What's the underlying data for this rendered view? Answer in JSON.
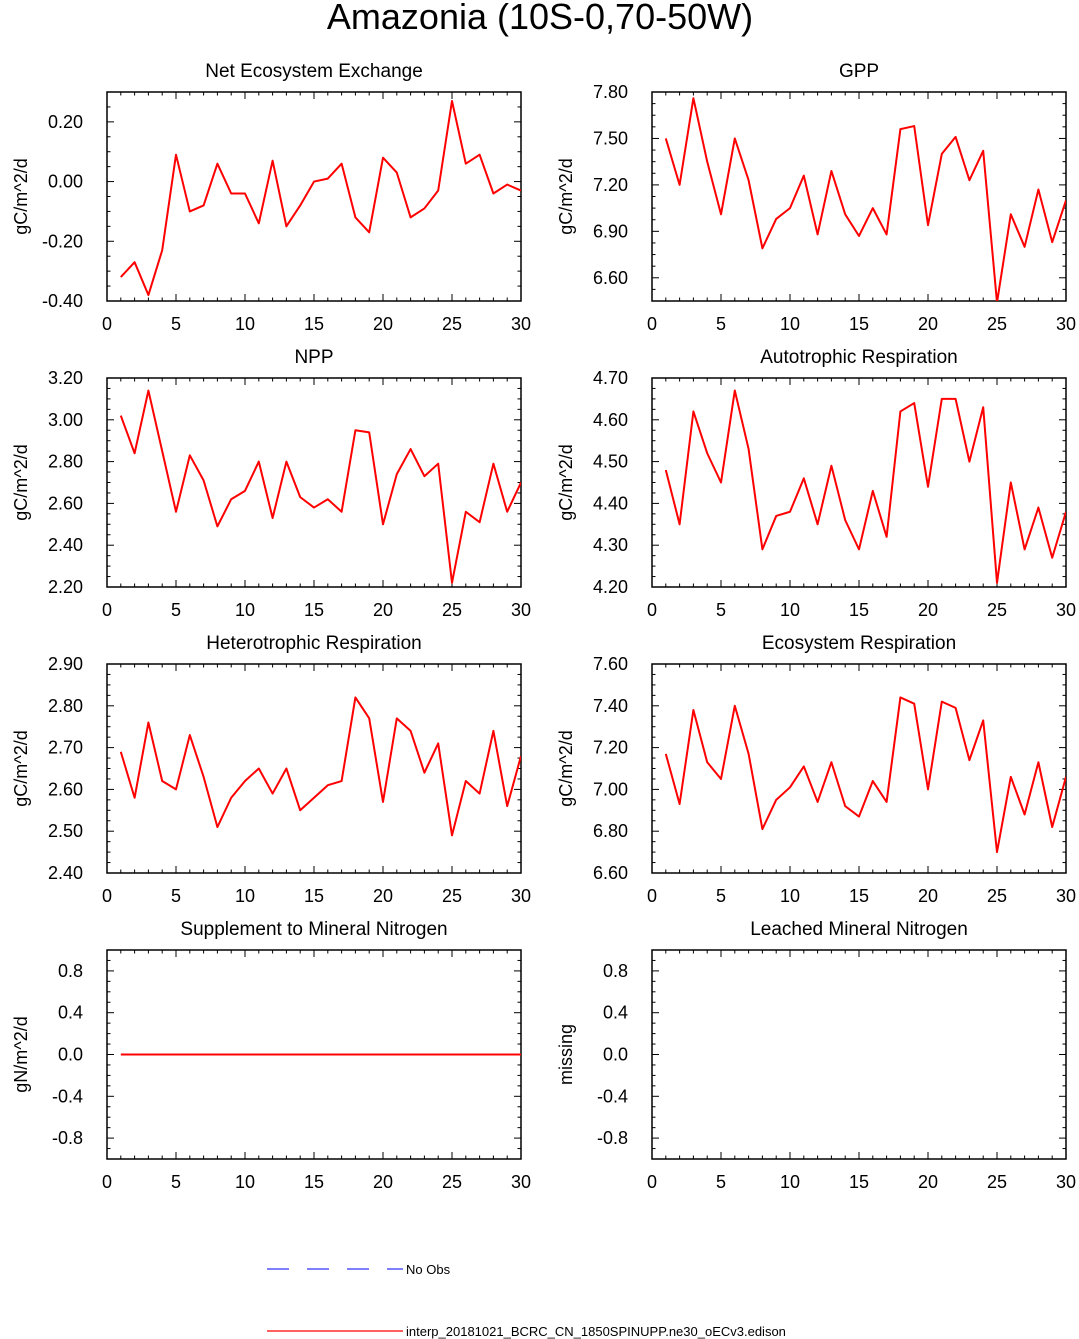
{
  "page": {
    "title": "Amazonia (10S-0,70-50W)"
  },
  "legend": {
    "obs_label": "No Obs",
    "model_label": "interp_20181021_BCRC_CN_1850SPINUPP.ne30_oECv3.edison",
    "obs_color": "#0000ff",
    "model_color": "#ff0000"
  },
  "chart_data": [
    {
      "type": "line",
      "title": "Net Ecosystem Exchange",
      "ylabel": "gC/m^2/d",
      "xlim": [
        0,
        30
      ],
      "ylim": [
        -0.4,
        0.3
      ],
      "yticks": [
        -0.4,
        -0.2,
        0.0,
        0.2
      ],
      "ytick_labels": [
        "-0.40",
        "-0.20",
        "0.00",
        "0.20"
      ],
      "xticks": [
        0,
        5,
        10,
        15,
        20,
        25,
        30
      ],
      "series": [
        {
          "name": "model",
          "color": "#ff0000",
          "x": [
            1,
            2,
            3,
            4,
            5,
            6,
            7,
            8,
            9,
            10,
            11,
            12,
            13,
            14,
            15,
            16,
            17,
            18,
            19,
            20,
            21,
            22,
            23,
            24,
            25,
            26,
            27,
            28,
            29,
            30
          ],
          "values": [
            -0.32,
            -0.27,
            -0.38,
            -0.23,
            0.09,
            -0.1,
            -0.08,
            0.06,
            -0.04,
            -0.04,
            -0.14,
            0.07,
            -0.15,
            -0.08,
            0.0,
            0.01,
            0.06,
            -0.12,
            -0.17,
            0.08,
            0.03,
            -0.12,
            -0.09,
            -0.03,
            0.27,
            0.06,
            0.09,
            -0.04,
            -0.01,
            -0.03
          ]
        }
      ]
    },
    {
      "type": "line",
      "title": "GPP",
      "ylabel": "gC/m^2/d",
      "xlim": [
        0,
        30
      ],
      "ylim": [
        6.45,
        7.8
      ],
      "yticks": [
        6.6,
        6.9,
        7.2,
        7.5,
        7.8
      ],
      "ytick_labels": [
        "6.60",
        "6.90",
        "7.20",
        "7.50",
        "7.80"
      ],
      "xticks": [
        0,
        5,
        10,
        15,
        20,
        25,
        30
      ],
      "series": [
        {
          "name": "model",
          "color": "#ff0000",
          "x": [
            1,
            2,
            3,
            4,
            5,
            6,
            7,
            8,
            9,
            10,
            11,
            12,
            13,
            14,
            15,
            16,
            17,
            18,
            19,
            20,
            21,
            22,
            23,
            24,
            25,
            26,
            27,
            28,
            29,
            30
          ],
          "values": [
            7.5,
            7.2,
            7.76,
            7.35,
            7.01,
            7.5,
            7.23,
            6.79,
            6.98,
            7.05,
            7.26,
            6.88,
            7.29,
            7.01,
            6.87,
            7.05,
            6.88,
            7.56,
            7.58,
            6.94,
            7.4,
            7.51,
            7.23,
            7.42,
            6.44,
            7.01,
            6.8,
            7.17,
            6.83,
            7.1
          ]
        }
      ]
    },
    {
      "type": "line",
      "title": "NPP",
      "ylabel": "gC/m^2/d",
      "xlim": [
        0,
        30
      ],
      "ylim": [
        2.2,
        3.2
      ],
      "yticks": [
        2.2,
        2.4,
        2.6,
        2.8,
        3.0,
        3.2
      ],
      "ytick_labels": [
        "2.20",
        "2.40",
        "2.60",
        "2.80",
        "3.00",
        "3.20"
      ],
      "xticks": [
        0,
        5,
        10,
        15,
        20,
        25,
        30
      ],
      "series": [
        {
          "name": "model",
          "color": "#ff0000",
          "x": [
            1,
            2,
            3,
            4,
            5,
            6,
            7,
            8,
            9,
            10,
            11,
            12,
            13,
            14,
            15,
            16,
            17,
            18,
            19,
            20,
            21,
            22,
            23,
            24,
            25,
            26,
            27,
            28,
            29,
            30
          ],
          "values": [
            3.02,
            2.84,
            3.14,
            2.85,
            2.56,
            2.83,
            2.71,
            2.49,
            2.62,
            2.66,
            2.8,
            2.53,
            2.8,
            2.63,
            2.58,
            2.62,
            2.56,
            2.95,
            2.94,
            2.5,
            2.74,
            2.86,
            2.73,
            2.79,
            2.22,
            2.56,
            2.51,
            2.79,
            2.56,
            2.7
          ]
        }
      ]
    },
    {
      "type": "line",
      "title": "Autotrophic Respiration",
      "ylabel": "gC/m^2/d",
      "xlim": [
        0,
        30
      ],
      "ylim": [
        4.2,
        4.7
      ],
      "yticks": [
        4.2,
        4.3,
        4.4,
        4.5,
        4.6,
        4.7
      ],
      "ytick_labels": [
        "4.20",
        "4.30",
        "4.40",
        "4.50",
        "4.60",
        "4.70"
      ],
      "xticks": [
        0,
        5,
        10,
        15,
        20,
        25,
        30
      ],
      "series": [
        {
          "name": "model",
          "color": "#ff0000",
          "x": [
            1,
            2,
            3,
            4,
            5,
            6,
            7,
            8,
            9,
            10,
            11,
            12,
            13,
            14,
            15,
            16,
            17,
            18,
            19,
            20,
            21,
            22,
            23,
            24,
            25,
            26,
            27,
            28,
            29,
            30
          ],
          "values": [
            4.48,
            4.35,
            4.62,
            4.52,
            4.45,
            4.67,
            4.53,
            4.29,
            4.37,
            4.38,
            4.46,
            4.35,
            4.49,
            4.36,
            4.29,
            4.43,
            4.32,
            4.62,
            4.64,
            4.44,
            4.65,
            4.65,
            4.5,
            4.63,
            4.21,
            4.45,
            4.29,
            4.39,
            4.27,
            4.38
          ]
        }
      ]
    },
    {
      "type": "line",
      "title": "Heterotrophic Respiration",
      "ylabel": "gC/m^2/d",
      "xlim": [
        0,
        30
      ],
      "ylim": [
        2.4,
        2.9
      ],
      "yticks": [
        2.4,
        2.5,
        2.6,
        2.7,
        2.8,
        2.9
      ],
      "ytick_labels": [
        "2.40",
        "2.50",
        "2.60",
        "2.70",
        "2.80",
        "2.90"
      ],
      "xticks": [
        0,
        5,
        10,
        15,
        20,
        25,
        30
      ],
      "series": [
        {
          "name": "model",
          "color": "#ff0000",
          "x": [
            1,
            2,
            3,
            4,
            5,
            6,
            7,
            8,
            9,
            10,
            11,
            12,
            13,
            14,
            15,
            16,
            17,
            18,
            19,
            20,
            21,
            22,
            23,
            24,
            25,
            26,
            27,
            28,
            29,
            30
          ],
          "values": [
            2.69,
            2.58,
            2.76,
            2.62,
            2.6,
            2.73,
            2.63,
            2.51,
            2.58,
            2.62,
            2.65,
            2.59,
            2.65,
            2.55,
            2.58,
            2.61,
            2.62,
            2.82,
            2.77,
            2.57,
            2.77,
            2.74,
            2.64,
            2.71,
            2.49,
            2.62,
            2.59,
            2.74,
            2.56,
            2.68
          ]
        }
      ]
    },
    {
      "type": "line",
      "title": "Ecosystem Respiration",
      "ylabel": "gC/m^2/d",
      "xlim": [
        0,
        30
      ],
      "ylim": [
        6.6,
        7.6
      ],
      "yticks": [
        6.6,
        6.8,
        7.0,
        7.2,
        7.4,
        7.6
      ],
      "ytick_labels": [
        "6.60",
        "6.80",
        "7.00",
        "7.20",
        "7.40",
        "7.60"
      ],
      "xticks": [
        0,
        5,
        10,
        15,
        20,
        25,
        30
      ],
      "series": [
        {
          "name": "model",
          "color": "#ff0000",
          "x": [
            1,
            2,
            3,
            4,
            5,
            6,
            7,
            8,
            9,
            10,
            11,
            12,
            13,
            14,
            15,
            16,
            17,
            18,
            19,
            20,
            21,
            22,
            23,
            24,
            25,
            26,
            27,
            28,
            29,
            30
          ],
          "values": [
            7.17,
            6.93,
            7.38,
            7.13,
            7.05,
            7.4,
            7.17,
            6.81,
            6.95,
            7.01,
            7.11,
            6.94,
            7.13,
            6.92,
            6.87,
            7.04,
            6.94,
            7.44,
            7.41,
            7.0,
            7.42,
            7.39,
            7.14,
            7.33,
            6.7,
            7.06,
            6.88,
            7.13,
            6.82,
            7.06
          ]
        }
      ]
    },
    {
      "type": "line",
      "title": "Supplement to Mineral Nitrogen",
      "ylabel": "gN/m^2/d",
      "xlim": [
        0,
        30
      ],
      "ylim": [
        -1.0,
        1.0
      ],
      "yticks": [
        -0.8,
        -0.4,
        0.0,
        0.4,
        0.8
      ],
      "ytick_labels": [
        "-0.8",
        "-0.4",
        "0.0",
        "0.4",
        "0.8"
      ],
      "xticks": [
        0,
        5,
        10,
        15,
        20,
        25,
        30
      ],
      "series": [
        {
          "name": "model",
          "color": "#ff0000",
          "x": [
            1,
            2,
            3,
            4,
            5,
            6,
            7,
            8,
            9,
            10,
            11,
            12,
            13,
            14,
            15,
            16,
            17,
            18,
            19,
            20,
            21,
            22,
            23,
            24,
            25,
            26,
            27,
            28,
            29,
            30
          ],
          "values": [
            0,
            0,
            0,
            0,
            0,
            0,
            0,
            0,
            0,
            0,
            0,
            0,
            0,
            0,
            0,
            0,
            0,
            0,
            0,
            0,
            0,
            0,
            0,
            0,
            0,
            0,
            0,
            0,
            0,
            0
          ]
        }
      ]
    },
    {
      "type": "line",
      "title": "Leached Mineral Nitrogen",
      "ylabel": "missing",
      "xlim": [
        0,
        30
      ],
      "ylim": [
        -1.0,
        1.0
      ],
      "yticks": [
        -0.8,
        -0.4,
        0.0,
        0.4,
        0.8
      ],
      "ytick_labels": [
        "-0.8",
        "-0.4",
        "0.0",
        "0.4",
        "0.8"
      ],
      "xticks": [
        0,
        5,
        10,
        15,
        20,
        25,
        30
      ],
      "series": []
    }
  ]
}
